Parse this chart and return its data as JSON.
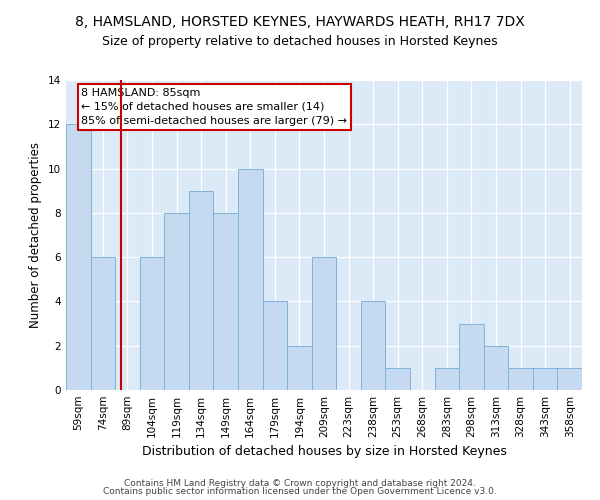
{
  "title": "8, HAMSLAND, HORSTED KEYNES, HAYWARDS HEATH, RH17 7DX",
  "subtitle": "Size of property relative to detached houses in Horsted Keynes",
  "xlabel": "Distribution of detached houses by size in Horsted Keynes",
  "ylabel": "Number of detached properties",
  "categories": [
    "59sqm",
    "74sqm",
    "89sqm",
    "104sqm",
    "119sqm",
    "134sqm",
    "149sqm",
    "164sqm",
    "179sqm",
    "194sqm",
    "209sqm",
    "223sqm",
    "238sqm",
    "253sqm",
    "268sqm",
    "283sqm",
    "298sqm",
    "313sqm",
    "328sqm",
    "343sqm",
    "358sqm"
  ],
  "values": [
    12,
    6,
    0,
    6,
    8,
    9,
    8,
    10,
    4,
    2,
    6,
    0,
    4,
    1,
    0,
    1,
    3,
    2,
    1,
    1,
    1
  ],
  "bar_color": "#c5d9f0",
  "bar_edge_color": "#7fb3d9",
  "annotation_text": "8 HAMSLAND: 85sqm\n← 15% of detached houses are smaller (14)\n85% of semi-detached houses are larger (79) →",
  "annotation_box_color": "#ffffff",
  "annotation_box_edge_color": "#cc0000",
  "ylim": [
    0,
    14
  ],
  "yticks": [
    0,
    2,
    4,
    6,
    8,
    10,
    12,
    14
  ],
  "background_color": "#dce9f7",
  "plot_bg_color": "#dce9f7",
  "footer_line1": "Contains HM Land Registry data © Crown copyright and database right 2024.",
  "footer_line2": "Contains public sector information licensed under the Open Government Licence v3.0.",
  "title_fontsize": 10,
  "subtitle_fontsize": 9,
  "xlabel_fontsize": 9,
  "ylabel_fontsize": 8.5,
  "tick_fontsize": 7.5,
  "annotation_fontsize": 8,
  "footer_fontsize": 6.5
}
